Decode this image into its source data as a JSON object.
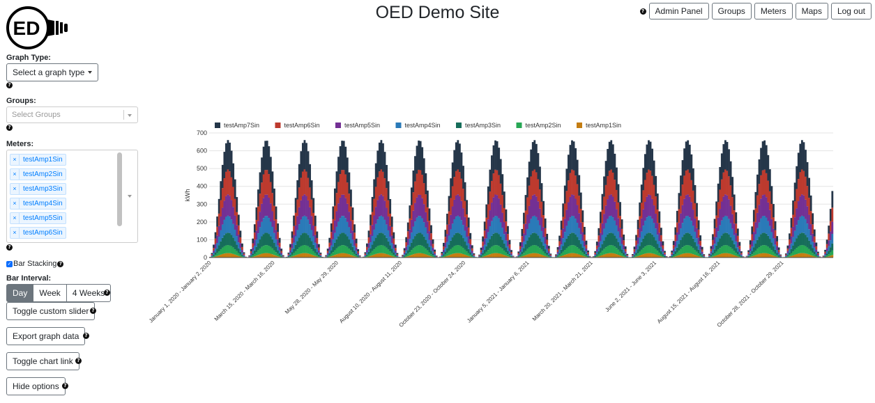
{
  "header": {
    "title": "OED Demo Site"
  },
  "logo": {
    "text": "ED"
  },
  "nav": {
    "admin_panel": "Admin Panel",
    "groups": "Groups",
    "meters": "Meters",
    "maps": "Maps",
    "logout": "Log out"
  },
  "help_icon": "?",
  "sidebar": {
    "graph_type_label": "Graph Type:",
    "graph_type_button": "Select a graph type",
    "groups_label": "Groups:",
    "groups_placeholder": "Select Groups",
    "meters_label": "Meters:",
    "selected_meters": [
      "testAmp1Sin",
      "testAmp2Sin",
      "testAmp3Sin",
      "testAmp4Sin",
      "testAmp5Sin",
      "testAmp6Sin"
    ],
    "remove_symbol": "×",
    "bar_stacking_label": "Bar Stacking",
    "bar_stacking_checked": true,
    "bar_interval_label": "Bar Interval:",
    "intervals": [
      "Day",
      "Week",
      "4 Weeks"
    ],
    "active_interval": "Day",
    "toggle_slider": "Toggle custom slider",
    "export_data": "Export graph data",
    "toggle_chart_link": "Toggle chart link",
    "hide_options": "Hide options"
  },
  "colors": {
    "primary": "#0d6efd",
    "tag_bg": "#ebf5ff",
    "tag_text": "#007eff",
    "active_button": "#6c757d"
  },
  "chart_data": {
    "type": "bar",
    "stacked": true,
    "ylabel": "kWh",
    "ylim": [
      0,
      700
    ],
    "yticks": [
      0,
      100,
      200,
      300,
      400,
      500,
      600,
      700
    ],
    "grid": true,
    "legend_position": "top",
    "xtick_labels": [
      "January 1, 2020 - January 2, 2020",
      "March 15, 2020 - March 16, 2020",
      "May 28, 2020 - May 29, 2020",
      "August 10, 2020 - August 11, 2020",
      "October 23, 2020 - October 24, 2020",
      "January 5, 2021 - January 6, 2021",
      "March 20, 2021 - March 21, 2021",
      "June 2, 2021 - June 3, 2021",
      "August 15, 2021 - August 16, 2021",
      "October 28, 2021 - October 29, 2021"
    ],
    "series": [
      {
        "name": "testAmp7Sin",
        "color": "#253649",
        "peak_increment": 165
      },
      {
        "name": "testAmp6Sin",
        "color": "#bd3a2e",
        "peak_increment": 140
      },
      {
        "name": "testAmp5Sin",
        "color": "#733094",
        "peak_increment": 120
      },
      {
        "name": "testAmp4Sin",
        "color": "#2a7ab8",
        "peak_increment": 95
      },
      {
        "name": "testAmp3Sin",
        "color": "#166d5a",
        "peak_increment": 70
      },
      {
        "name": "testAmp2Sin",
        "color": "#27a754",
        "peak_increment": 45
      },
      {
        "name": "testAmp1Sin",
        "color": "#c47d12",
        "peak_increment": 25
      }
    ],
    "daily_values_note_cycles": 16.3,
    "total_peak": 660
  }
}
